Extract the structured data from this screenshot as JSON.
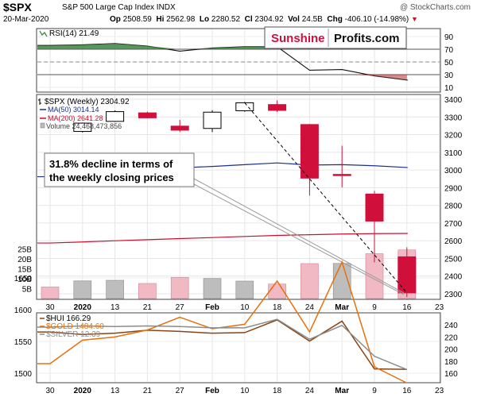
{
  "header": {
    "symbol": "$SPX",
    "name": "S&P 500 Large Cap Index",
    "exchange": "INDX",
    "copyright": "@ StockCharts.com",
    "date": "20-Mar-2020",
    "open_label": "Op",
    "open": "2508.59",
    "high_label": "Hi",
    "high": "2562.98",
    "low_label": "Lo",
    "low": "2280.52",
    "close_label": "Cl",
    "close": "2304.92",
    "vol_label": "Vol",
    "vol": "24.5B",
    "chg_label": "Chg",
    "chg": "-406.10 (-14.98%)",
    "chg_arrow": "▼"
  },
  "branding": {
    "part1": "Sunshine",
    "part2": "Profits.com"
  },
  "annotation": {
    "line1": "31.8% decline in terms of",
    "line2": "the weekly closing prices"
  },
  "colors": {
    "up": "#ffffff",
    "down": "#d0103a",
    "ma50": "#1c2f8c",
    "ma200": "#c8102e",
    "hui": "#8b4513",
    "gold": "#e8700a",
    "silver": "#8c8c8c",
    "rsi": "#000000"
  },
  "chart_data": [
    {
      "panel": "rsi",
      "type": "line",
      "legend": "RSI(14) 21.49",
      "ylim": [
        0,
        100
      ],
      "yticks": [
        "90",
        "70",
        "50",
        "30",
        "10"
      ],
      "reference_lines": [
        70,
        50,
        30
      ],
      "x": [
        "Dec 30",
        "Jan 6",
        "Jan 13",
        "Jan 21",
        "Jan 27",
        "Feb 3",
        "Feb 10",
        "Feb 18",
        "Feb 24",
        "Mar 2",
        "Mar 9",
        "Mar 16"
      ],
      "values": [
        76,
        77,
        79,
        75,
        67,
        72,
        74,
        74,
        37,
        38,
        28,
        21.49
      ]
    },
    {
      "panel": "price",
      "type": "candlestick",
      "legend": "$SPX (Weekly) 2304.92",
      "ylim": [
        2240,
        3400
      ],
      "yticks": [
        "3400",
        "3300",
        "3200",
        "3100",
        "3000",
        "2900",
        "2800",
        "2700",
        "2600",
        "2500",
        "2400",
        "2300"
      ],
      "xticks": [
        "30",
        "2020",
        "13",
        "21",
        "27",
        "Feb",
        "10",
        "18",
        "24",
        "Mar",
        "9",
        "16",
        "23"
      ],
      "x": [
        "Dec 30",
        "Jan 6",
        "Jan 13",
        "Jan 21",
        "Jan 27",
        "Feb 3",
        "Feb 10",
        "Feb 18",
        "Feb 24",
        "Mar 2",
        "Mar 9",
        "Mar 16"
      ],
      "candles": [
        {
          "o": null,
          "h": null,
          "l": null,
          "c": null
        },
        {
          "o": 3218,
          "h": 3268,
          "l": 3212,
          "c": 3265
        },
        {
          "o": 3275,
          "h": 3337,
          "l": 3272,
          "c": 3330
        },
        {
          "o": 3323,
          "h": 3330,
          "l": 3292,
          "c": 3295
        },
        {
          "o": 3248,
          "h": 3283,
          "l": 3215,
          "c": 3225
        },
        {
          "o": 3235,
          "h": 3338,
          "l": 3214,
          "c": 3327
        },
        {
          "o": 3335,
          "h": 3385,
          "l": 3329,
          "c": 3380
        },
        {
          "o": 3370,
          "h": 3394,
          "l": 3328,
          "c": 3337
        },
        {
          "o": 3257,
          "h": 3260,
          "l": 2855,
          "c": 2954
        },
        {
          "o": 2975,
          "h": 3137,
          "l": 2901,
          "c": 2972
        },
        {
          "o": 2864,
          "h": 2882,
          "l": 2478,
          "c": 2711
        },
        {
          "o": 2509,
          "h": 2563,
          "l": 2281,
          "c": 2305
        }
      ],
      "ma50": {
        "legend": "MA(50) 3014.14",
        "values": [
          2962,
          2973,
          2990,
          3005,
          3012,
          3020,
          3030,
          3040,
          3028,
          3030,
          3024,
          3014.14
        ]
      },
      "ma200": {
        "legend": "MA(200) 2641.28",
        "values": [
          2587,
          2593,
          2600,
          2606,
          2612,
          2618,
          2624,
          2630,
          2634,
          2638,
          2640,
          2641.28
        ]
      },
      "volume": {
        "legend": "Volume 24,468,473,856",
        "yticks": [
          "25B",
          "20B",
          "15B",
          "10B",
          "5B"
        ],
        "values": [
          5.8,
          8.9,
          9.2,
          7.6,
          10.7,
          10.1,
          8.8,
          7.3,
          17.6,
          17.7,
          22.6,
          24.5
        ],
        "direction": [
          "down",
          "up",
          "up",
          "down",
          "down",
          "up",
          "up",
          "down",
          "down",
          "up",
          "down",
          "down"
        ]
      },
      "trendline": {
        "from": {
          "x": "Feb 10",
          "y": 3380
        },
        "to": {
          "x": "Mar 16",
          "y": 2305
        }
      }
    },
    {
      "panel": "metals",
      "type": "line",
      "xticks": [
        "30",
        "2020",
        "13",
        "21",
        "27",
        "Feb",
        "10",
        "18",
        "24",
        "Mar",
        "9",
        "16",
        "23"
      ],
      "x": [
        "Dec 30",
        "Jan 6",
        "Jan 13",
        "Jan 21",
        "Jan 27",
        "Feb 3",
        "Feb 10",
        "Feb 18",
        "Feb 24",
        "Mar 2",
        "Mar 9",
        "Mar 16"
      ],
      "left_axis": {
        "ticks": [
          "1650",
          "1600",
          "1550",
          "1500"
        ],
        "ylim": [
          1480,
          1700
        ]
      },
      "right_axis": {
        "ticks": [
          "240",
          "220",
          "200",
          "180",
          "160"
        ],
        "ylim": [
          156,
          252
        ]
      },
      "series": [
        {
          "name": "$HUI",
          "legend": "$HUI 166.29",
          "axis": "right",
          "values": [
            228,
            224,
            226,
            231,
            229,
            226,
            227,
            248,
            213,
            246,
            167,
            166.29
          ]
        },
        {
          "name": "$GOLD",
          "legend": "$GOLD 1484.60",
          "axis": "left",
          "values": [
            1515,
            1552,
            1557,
            1568,
            1588,
            1570,
            1577,
            1645,
            1565,
            1675,
            1510,
            1484.6
          ]
        },
        {
          "name": "$SILVER",
          "legend": "$SILVER 12.39",
          "axis": "right",
          "values": [
            236,
            238,
            237,
            238,
            237,
            235,
            235,
            249,
            216,
            239,
            188,
            166
          ]
        }
      ]
    }
  ]
}
